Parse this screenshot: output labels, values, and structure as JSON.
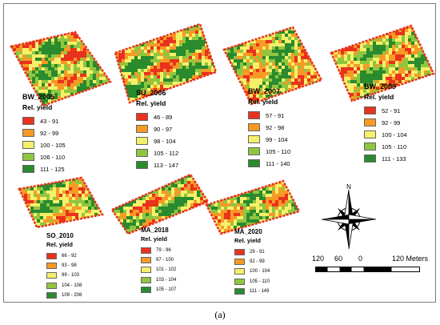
{
  "colors": {
    "c1": "#e8321e",
    "c2": "#f79a25",
    "c3": "#f5f06a",
    "c4": "#90c63f",
    "c5": "#2a8a2e"
  },
  "maps": [
    {
      "label": "BW_2005",
      "legend_title": "Rel. yield",
      "classes": [
        "43 - 91",
        "92 - 99",
        "100 - 105",
        "106 - 110",
        "111 - 125"
      ]
    },
    {
      "label": "SU_2006",
      "legend_title": "Rel. yield",
      "classes": [
        "46 - 89",
        "90 - 97",
        "98 - 104",
        "105 - 112",
        "113 - 147"
      ]
    },
    {
      "label": "BW_2007",
      "legend_title": "Rel. yield",
      "classes": [
        "57 - 91",
        "92 - 98",
        "99 - 104",
        "105 - 110",
        "111 - 140"
      ]
    },
    {
      "label": "BW_2009",
      "legend_title": "Rel. yield",
      "classes": [
        "52 - 91",
        "92 - 99",
        "100 - 104",
        "105 - 110",
        "111 - 133"
      ]
    },
    {
      "label": "SO_2010",
      "legend_title": "Rel. yield",
      "classes": [
        "66 - 92",
        "93 - 98",
        "99 - 103",
        "104 - 108",
        "109 - 208"
      ]
    },
    {
      "label": "MA_2018",
      "legend_title": "Rel. yield",
      "classes": [
        "79 - 96",
        "97 - 100",
        "101 - 102",
        "103 - 104",
        "105 - 107"
      ]
    },
    {
      "label": "MA_2020",
      "legend_title": "Rel. yield",
      "classes": [
        "29 - 91",
        "92 - 99",
        "100 - 104",
        "105 - 110",
        "111 - 149"
      ]
    }
  ],
  "compass": {
    "north_label": "N"
  },
  "scale_bar": {
    "ticks": [
      "120",
      "60",
      "0",
      "120 Meters"
    ]
  },
  "caption": "(a)"
}
